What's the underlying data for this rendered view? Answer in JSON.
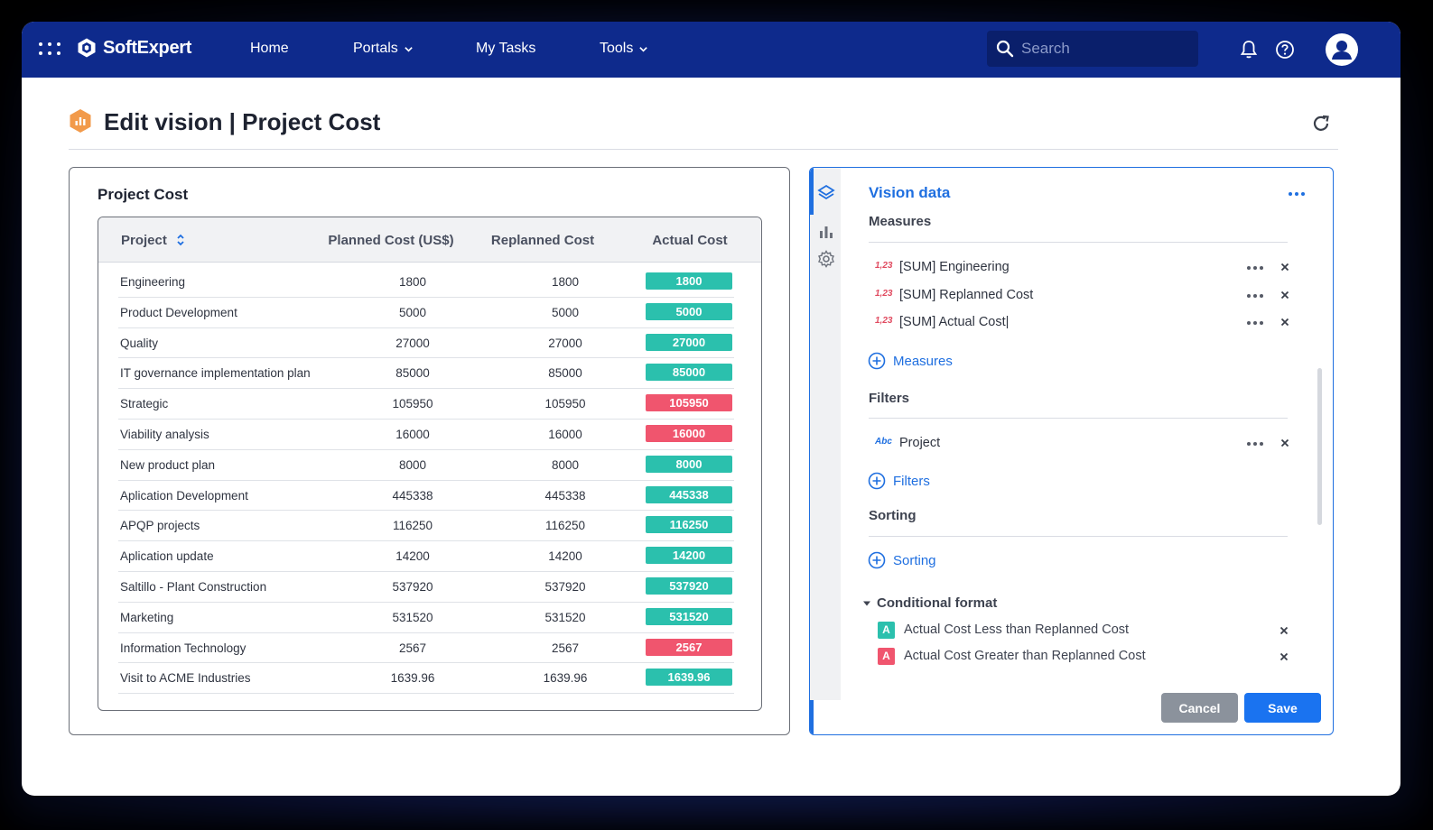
{
  "topbar": {
    "brand": "SoftExpert",
    "nav": [
      {
        "label": "Home",
        "dropdown": false
      },
      {
        "label": "Portals",
        "dropdown": true
      },
      {
        "label": "My Tasks",
        "dropdown": false
      },
      {
        "label": "Tools",
        "dropdown": true
      }
    ],
    "search_placeholder": "Search",
    "color": "#0e2a8c"
  },
  "page": {
    "title": "Edit vision | Project Cost"
  },
  "table_card": {
    "title": "Project Cost",
    "columns": [
      "Project",
      "Planned Cost (US$)",
      "Replanned Cost",
      "Actual Cost"
    ],
    "rows": [
      {
        "project": "Engineering",
        "planned": "1800",
        "replanned": "1800",
        "actual": "1800",
        "status": "green"
      },
      {
        "project": "Product Development",
        "planned": "5000",
        "replanned": "5000",
        "actual": "5000",
        "status": "green"
      },
      {
        "project": "Quality",
        "planned": "27000",
        "replanned": "27000",
        "actual": "27000",
        "status": "green"
      },
      {
        "project": "IT governance implementation plan",
        "planned": "85000",
        "replanned": "85000",
        "actual": "85000",
        "status": "green"
      },
      {
        "project": "Strategic",
        "planned": "105950",
        "replanned": "105950",
        "actual": "105950",
        "status": "red"
      },
      {
        "project": "Viability analysis",
        "planned": "16000",
        "replanned": "16000",
        "actual": "16000",
        "status": "red"
      },
      {
        "project": "New product plan",
        "planned": "8000",
        "replanned": "8000",
        "actual": "8000",
        "status": "green"
      },
      {
        "project": "Aplication Development",
        "planned": "445338",
        "replanned": "445338",
        "actual": "445338",
        "status": "green"
      },
      {
        "project": "APQP projects",
        "planned": "116250",
        "replanned": "116250",
        "actual": "116250",
        "status": "green"
      },
      {
        "project": "Aplication update",
        "planned": "14200",
        "replanned": "14200",
        "actual": "14200",
        "status": "green"
      },
      {
        "project": "Saltillo - Plant Construction",
        "planned": "537920",
        "replanned": "537920",
        "actual": "537920",
        "status": "green"
      },
      {
        "project": "Marketing",
        "planned": "531520",
        "replanned": "531520",
        "actual": "531520",
        "status": "green"
      },
      {
        "project": "Information Technology",
        "planned": "2567",
        "replanned": "2567",
        "actual": "2567",
        "status": "red"
      },
      {
        "project": "Visit to ACME Industries",
        "planned": "1639.96",
        "replanned": "1639.96",
        "actual": "1639.96",
        "status": "green"
      }
    ],
    "status_colors": {
      "green": "#2bc0ad",
      "red": "#f0556e"
    }
  },
  "vision_panel": {
    "title": "Vision data",
    "measures_title": "Measures",
    "measures": [
      {
        "type": "1,23",
        "label": "[SUM] Engineering"
      },
      {
        "type": "1,23",
        "label": "[SUM] Replanned Cost"
      },
      {
        "type": "1,23",
        "label": "[SUM] Actual Cost|"
      }
    ],
    "add_measures": "Measures",
    "filters_title": "Filters",
    "filters": [
      {
        "type": "Abc",
        "label": "Project"
      }
    ],
    "add_filters": "Filters",
    "sorting_title": "Sorting",
    "add_sorting": "Sorting",
    "conditional_title": "Conditional format",
    "conditional": [
      {
        "badge": "A",
        "label": "Actual Cost Less than Replanned Cost",
        "color": "#2bc0ad"
      },
      {
        "badge": "A",
        "label": "Actual Cost Greater than Replanned Cost",
        "color": "#f0556e"
      }
    ],
    "cancel_label": "Cancel",
    "save_label": "Save",
    "accent": "#1f6fe0"
  }
}
